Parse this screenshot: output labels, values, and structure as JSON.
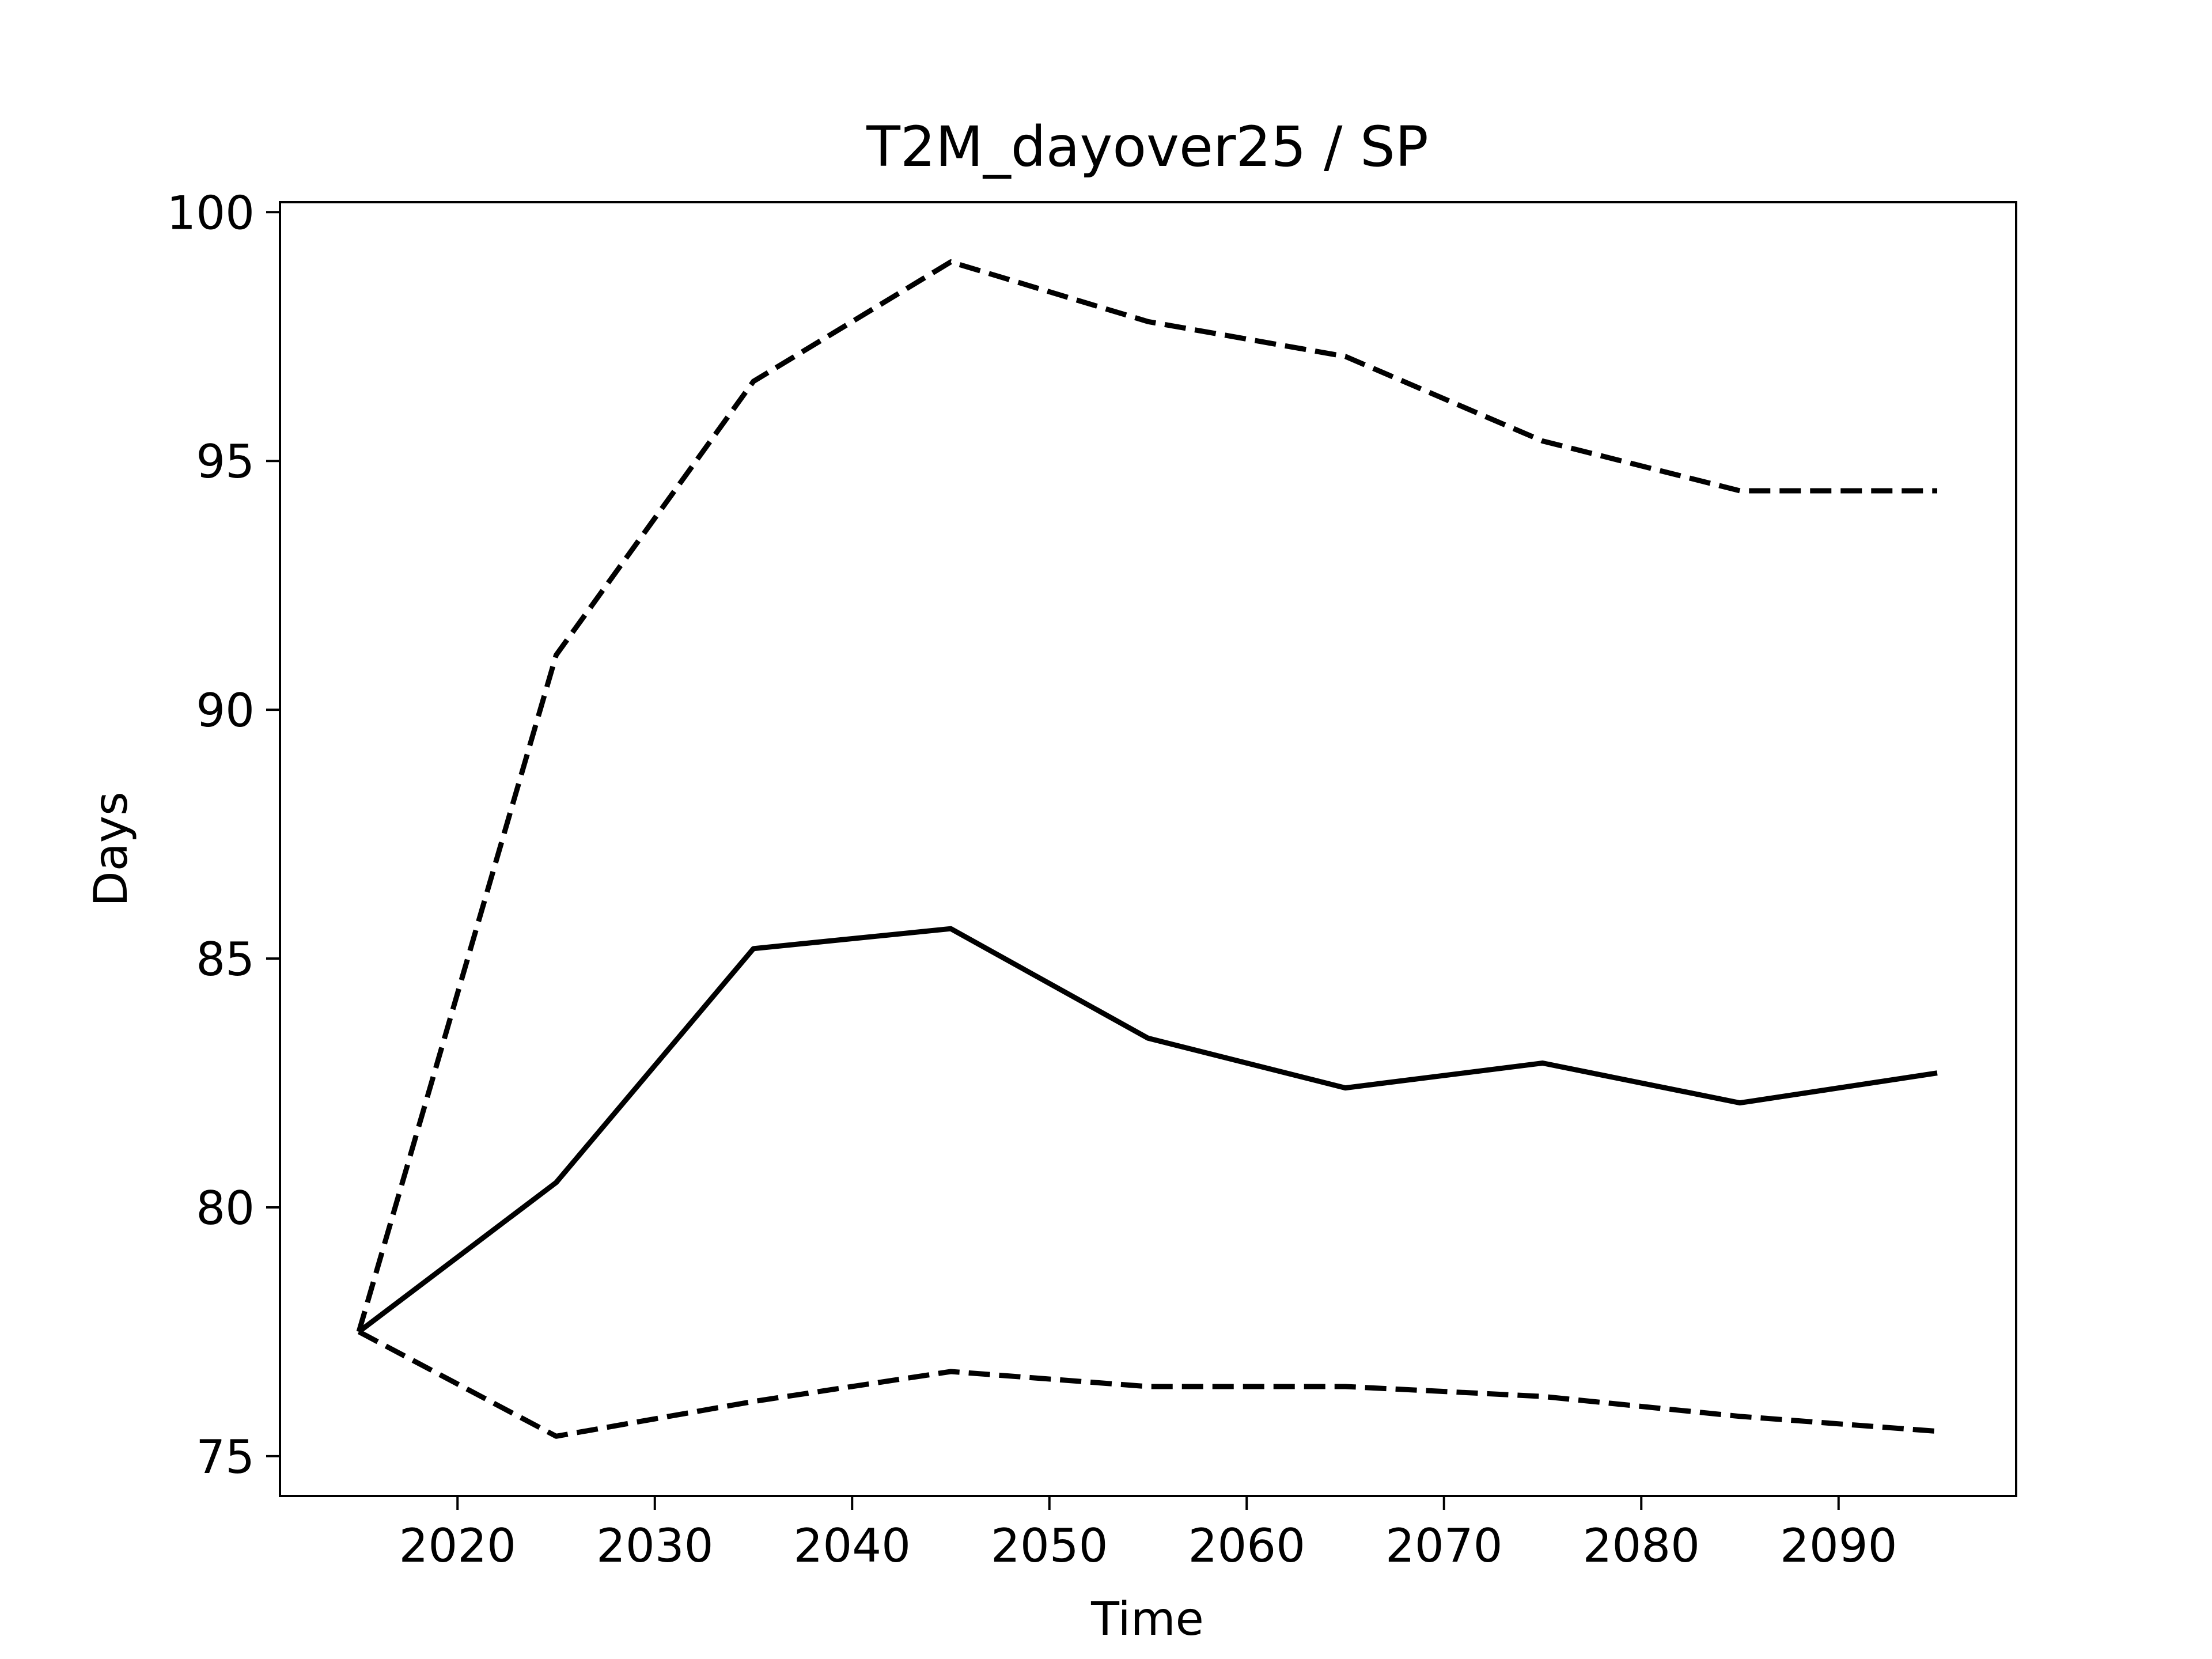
{
  "chart_data": {
    "type": "line",
    "title": "T2M_dayover25 / SP",
    "xlabel": "Time",
    "ylabel": "Days",
    "x": [
      2015,
      2025,
      2035,
      2045,
      2055,
      2065,
      2075,
      2085,
      2095
    ],
    "xlim": [
      2011,
      2099
    ],
    "ylim": [
      74.2,
      100.2
    ],
    "xticks": [
      2020,
      2030,
      2040,
      2050,
      2060,
      2070,
      2080,
      2090
    ],
    "yticks": [
      75,
      80,
      85,
      90,
      95,
      100
    ],
    "grid": false,
    "series": [
      {
        "style": "solid",
        "color": "#000000",
        "values": [
          77.5,
          80.5,
          85.2,
          85.6,
          83.4,
          82.4,
          82.9,
          82.1,
          82.7
        ]
      },
      {
        "style": "dashed",
        "color": "#000000",
        "values": [
          77.5,
          91.1,
          96.6,
          99.0,
          97.8,
          97.1,
          95.4,
          94.4,
          94.4
        ]
      },
      {
        "style": "dashed",
        "color": "#000000",
        "values": [
          77.5,
          75.4,
          76.1,
          76.7,
          76.4,
          76.4,
          76.2,
          75.8,
          75.5
        ]
      }
    ]
  }
}
